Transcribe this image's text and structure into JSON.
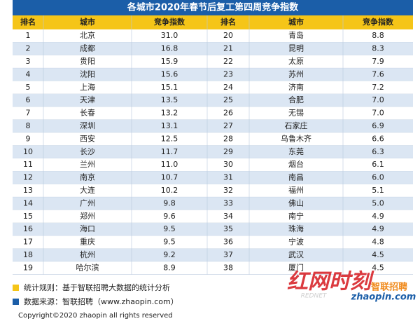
{
  "title": "各城市2020年春节后复工第四周竞争指数",
  "table": {
    "header": [
      "排名",
      "城市",
      "竞争指数",
      "排名",
      "城市",
      "竞争指数"
    ],
    "rows": [
      [
        "1",
        "北京",
        "31.0",
        "20",
        "青岛",
        "8.8"
      ],
      [
        "2",
        "成都",
        "16.8",
        "21",
        "昆明",
        "8.3"
      ],
      [
        "3",
        "贵阳",
        "15.9",
        "22",
        "太原",
        "7.9"
      ],
      [
        "4",
        "沈阳",
        "15.6",
        "23",
        "苏州",
        "7.6"
      ],
      [
        "5",
        "上海",
        "15.1",
        "24",
        "济南",
        "7.2"
      ],
      [
        "6",
        "天津",
        "13.5",
        "25",
        "合肥",
        "7.0"
      ],
      [
        "7",
        "长春",
        "13.2",
        "26",
        "无锡",
        "7.0"
      ],
      [
        "8",
        "深圳",
        "13.1",
        "27",
        "石家庄",
        "6.9"
      ],
      [
        "9",
        "西安",
        "12.5",
        "28",
        "乌鲁木齐",
        "6.6"
      ],
      [
        "10",
        "长沙",
        "11.7",
        "29",
        "东莞",
        "6.3"
      ],
      [
        "11",
        "兰州",
        "11.0",
        "30",
        "烟台",
        "6.1"
      ],
      [
        "12",
        "南京",
        "10.7",
        "31",
        "南昌",
        "6.0"
      ],
      [
        "13",
        "大连",
        "10.2",
        "32",
        "福州",
        "5.1"
      ],
      [
        "14",
        "广州",
        "9.8",
        "33",
        "佛山",
        "5.0"
      ],
      [
        "15",
        "郑州",
        "9.6",
        "34",
        "南宁",
        "4.9"
      ],
      [
        "16",
        "海口",
        "9.5",
        "35",
        "珠海",
        "4.9"
      ],
      [
        "17",
        "重庆",
        "9.5",
        "36",
        "宁波",
        "4.8"
      ],
      [
        "18",
        "杭州",
        "9.2",
        "37",
        "武汉",
        "4.5"
      ],
      [
        "19",
        "哈尔滨",
        "8.9",
        "38",
        "厦门",
        "4.5"
      ]
    ]
  },
  "notes": [
    "统计规则：基于智联招聘大数据的统计分析",
    "数据来源：智联招聘（www.zhaopin.com）"
  ],
  "copyright": "Copyright©2020 zhaopin all rights reserved",
  "logos": {
    "rednet": "红网时刻",
    "rednet_en": "REDNET",
    "zhaopin": "智联招聘",
    "zhaopin_url": "zhaopin.com"
  }
}
